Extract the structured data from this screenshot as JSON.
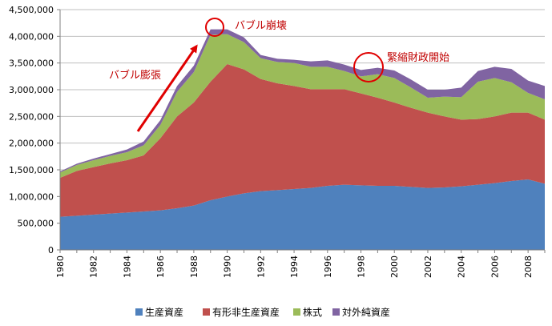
{
  "chart_data": {
    "type": "area",
    "stacked": true,
    "grid": true,
    "legend_position": "bottom",
    "ylim": [
      0,
      4500000
    ],
    "y_ticks": [
      {
        "value": 0,
        "label": "0"
      },
      {
        "value": 500000,
        "label": "500,000"
      },
      {
        "value": 1000000,
        "label": "1,000,000"
      },
      {
        "value": 1500000,
        "label": "1,500,000"
      },
      {
        "value": 2000000,
        "label": "2,000,000"
      },
      {
        "value": 2500000,
        "label": "2,500,000"
      },
      {
        "value": 3000000,
        "label": "3,000,000"
      },
      {
        "value": 3500000,
        "label": "3,500,000"
      },
      {
        "value": 4000000,
        "label": "4,000,000"
      },
      {
        "value": 4500000,
        "label": "4,500,000"
      }
    ],
    "x": [
      1980,
      1981,
      1982,
      1983,
      1984,
      1985,
      1986,
      1987,
      1988,
      1989,
      1990,
      1991,
      1992,
      1993,
      1994,
      1995,
      1996,
      1997,
      1998,
      1999,
      2000,
      2001,
      2002,
      2003,
      2004,
      2005,
      2006,
      2007,
      2008,
      2009
    ],
    "x_tick_labels": [
      "1980",
      "1982",
      "1984",
      "1986",
      "1988",
      "1990",
      "1992",
      "1994",
      "1996",
      "1998",
      "2000",
      "2002",
      "2004",
      "2006",
      "2008"
    ],
    "series": [
      {
        "name": "生産資産",
        "color": "#4F81BD",
        "values": [
          620000,
          640000,
          660000,
          680000,
          700000,
          720000,
          740000,
          780000,
          830000,
          930000,
          1000000,
          1060000,
          1100000,
          1120000,
          1140000,
          1160000,
          1200000,
          1220000,
          1210000,
          1200000,
          1200000,
          1180000,
          1160000,
          1170000,
          1190000,
          1220000,
          1250000,
          1290000,
          1320000,
          1240000
        ]
      },
      {
        "name": "有形非生産資産",
        "color": "#C0504D",
        "values": [
          730000,
          840000,
          890000,
          940000,
          980000,
          1050000,
          1350000,
          1720000,
          1930000,
          2220000,
          2480000,
          2320000,
          2100000,
          2000000,
          1930000,
          1850000,
          1810000,
          1790000,
          1720000,
          1650000,
          1560000,
          1480000,
          1410000,
          1330000,
          1250000,
          1230000,
          1250000,
          1280000,
          1250000,
          1200000
        ]
      },
      {
        "name": "株式",
        "color": "#9BBB59",
        "values": [
          100000,
          110000,
          130000,
          140000,
          150000,
          190000,
          250000,
          460000,
          570000,
          880000,
          560000,
          510000,
          390000,
          400000,
          430000,
          420000,
          420000,
          340000,
          320000,
          440000,
          460000,
          380000,
          280000,
          370000,
          420000,
          700000,
          720000,
          570000,
          370000,
          380000
        ]
      },
      {
        "name": "対外純資産",
        "color": "#8064A2",
        "values": [
          20000,
          25000,
          30000,
          35000,
          50000,
          70000,
          90000,
          110000,
          120000,
          100000,
          90000,
          90000,
          60000,
          60000,
          60000,
          100000,
          120000,
          120000,
          120000,
          120000,
          140000,
          150000,
          150000,
          130000,
          180000,
          200000,
          210000,
          250000,
          230000,
          250000
        ]
      }
    ],
    "annotations": [
      {
        "text": "バブル膨張",
        "color": "#C00000"
      },
      {
        "text": "バブル崩壊",
        "color": "#C00000"
      },
      {
        "text": "緊縮財政開始",
        "color": "#C00000"
      }
    ]
  }
}
